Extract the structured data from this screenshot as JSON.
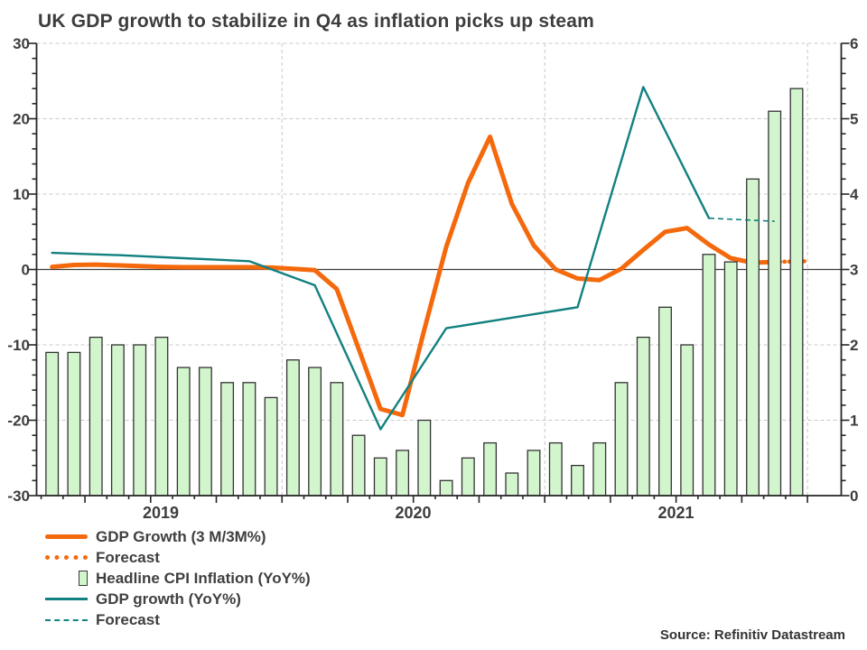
{
  "title": "UK GDP growth to stabilize in Q4 as inflation picks up steam",
  "source": "Source: Refinitiv Datastream",
  "colors": {
    "gdp_3m": "#f5690d",
    "gdp_yoy": "#128080",
    "cpi_bar_fill": "#d2f5cd",
    "cpi_bar_stroke": "#333333",
    "grid": "#c9c9c9",
    "axis": "#262626",
    "text": "#3d3d3d"
  },
  "legend": [
    {
      "label": "GDP Growth (3 M/3M%)",
      "swatch": "orange-solid"
    },
    {
      "label": "Forecast",
      "swatch": "orange-dotted"
    },
    {
      "label": "Headline CPI Inflation (YoY%)",
      "swatch": "green-square"
    },
    {
      "label": "GDP growth (YoY%)",
      "swatch": "teal-solid"
    },
    {
      "label": "Forecast",
      "swatch": "teal-dashed"
    }
  ],
  "chart_data": {
    "type": "combo",
    "title": "UK GDP growth to stabilize in Q4 as inflation picks up steam",
    "x_axis": {
      "year_labels": [
        "2019",
        "2020",
        "2021"
      ]
    },
    "left_axis": {
      "min": -30,
      "max": 30,
      "ticks": [
        30,
        20,
        10,
        0,
        -10,
        -20,
        -30
      ]
    },
    "right_axis": {
      "min": 0,
      "max": 6,
      "ticks": [
        6,
        5,
        4,
        3,
        2,
        1,
        0
      ]
    },
    "series": [
      {
        "name": "GDP Growth (3 M/3M%)",
        "type": "line",
        "axis": "left",
        "color": "#f5690d",
        "dash": "solid",
        "freq": "monthly",
        "start_index": 0,
        "values": [
          0.35,
          0.6,
          0.65,
          0.55,
          0.45,
          0.35,
          0.3,
          0.3,
          0.3,
          0.3,
          0.25,
          0.1,
          -0.1,
          -2.6,
          -10.5,
          -18.5,
          -19.3,
          -8.0,
          3.0,
          11.5,
          17.6,
          8.7,
          3.2,
          0.0,
          -1.2,
          -1.4,
          0.1,
          2.6,
          5.0,
          5.5,
          3.3,
          1.5,
          0.9,
          1.0
        ]
      },
      {
        "name": "Forecast",
        "type": "line",
        "axis": "left",
        "color": "#f5690d",
        "dash": "dotted",
        "freq": "monthly",
        "points": [
          [
            33,
            1.0
          ],
          [
            34.5,
            1.1
          ]
        ]
      },
      {
        "name": "Headline CPI Inflation (YoY%)",
        "type": "bar",
        "axis": "right",
        "fill": "#d2f5cd",
        "stroke": "#333333",
        "freq": "monthly",
        "start_index": 0,
        "values": [
          1.9,
          1.9,
          2.1,
          2.0,
          2.0,
          2.1,
          1.7,
          1.7,
          1.5,
          1.5,
          1.3,
          1.8,
          1.7,
          1.5,
          0.8,
          0.5,
          0.6,
          1.0,
          0.2,
          0.5,
          0.7,
          0.3,
          0.6,
          0.7,
          0.4,
          0.7,
          1.5,
          2.1,
          2.5,
          2.0,
          3.2,
          3.1,
          4.2,
          5.1,
          5.4
        ]
      },
      {
        "name": "GDP growth (YoY%)",
        "type": "line",
        "axis": "left",
        "color": "#128080",
        "dash": "solid",
        "freq": "quarterly",
        "start_index": 0,
        "values": [
          2.2,
          1.9,
          1.5,
          1.1,
          -2.1,
          -21.2,
          -7.8,
          -6.4,
          -5.0,
          24.2,
          6.8
        ]
      },
      {
        "name": "Forecast",
        "type": "line",
        "axis": "left",
        "color": "#128080",
        "dash": "dashed",
        "freq": "quarterly",
        "points": [
          [
            10,
            6.8
          ],
          [
            11,
            6.4
          ]
        ]
      }
    ]
  }
}
